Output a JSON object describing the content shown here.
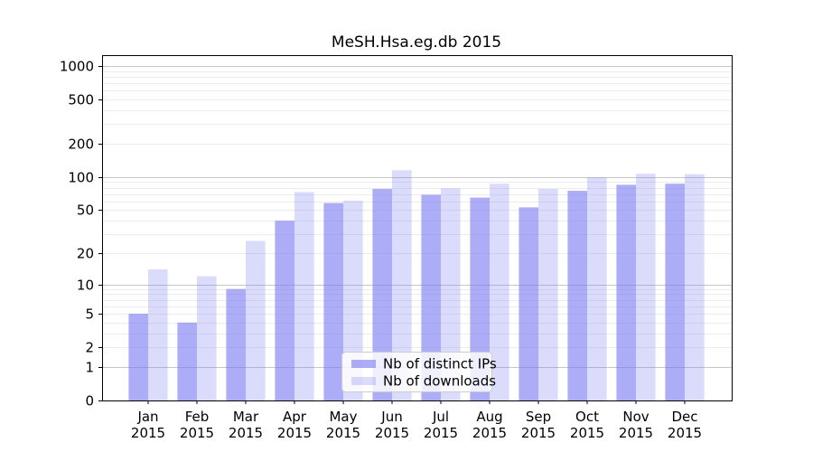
{
  "chart_data": {
    "type": "bar",
    "title": "MeSH.Hsa.eg.db 2015",
    "categories": [
      "Jan",
      "Feb",
      "Mar",
      "Apr",
      "May",
      "Jun",
      "Jul",
      "Aug",
      "Sep",
      "Oct",
      "Nov",
      "Dec"
    ],
    "category_year": "2015",
    "series": [
      {
        "name": "Nb of distinct IPs",
        "values": [
          5,
          4,
          9,
          40,
          58,
          78,
          69,
          65,
          53,
          75,
          85,
          87
        ]
      },
      {
        "name": "Nb of downloads",
        "values": [
          14,
          12,
          26,
          73,
          61,
          115,
          79,
          87,
          78,
          99,
          107,
          106
        ]
      }
    ],
    "xlabel": "",
    "ylabel": "",
    "y_scale": "log10(value+1)",
    "ylim": [
      0,
      1260
    ],
    "y_ticks": [
      0,
      1,
      2,
      5,
      10,
      20,
      50,
      100,
      200,
      500,
      1000
    ],
    "grid": {
      "major": [
        1,
        10,
        100,
        1000
      ],
      "minor": [
        2,
        3,
        4,
        5,
        6,
        7,
        8,
        9,
        20,
        30,
        40,
        50,
        60,
        70,
        80,
        90,
        200,
        300,
        400,
        500,
        600,
        700,
        800,
        900
      ]
    },
    "legend": {
      "position": "lower center",
      "labels": [
        "Nb of distinct IPs",
        "Nb of downloads"
      ]
    }
  },
  "colors": {
    "bar_base": "#7a7af2",
    "bar_dark_opacity": 0.62,
    "bar_light_opacity": 0.27,
    "grid_major": "#c6c6c6",
    "grid_minor": "#ececec",
    "axis": "#000000",
    "text": "#000000",
    "legend_border": "#cccccc",
    "legend_bg": "#ffffff"
  }
}
